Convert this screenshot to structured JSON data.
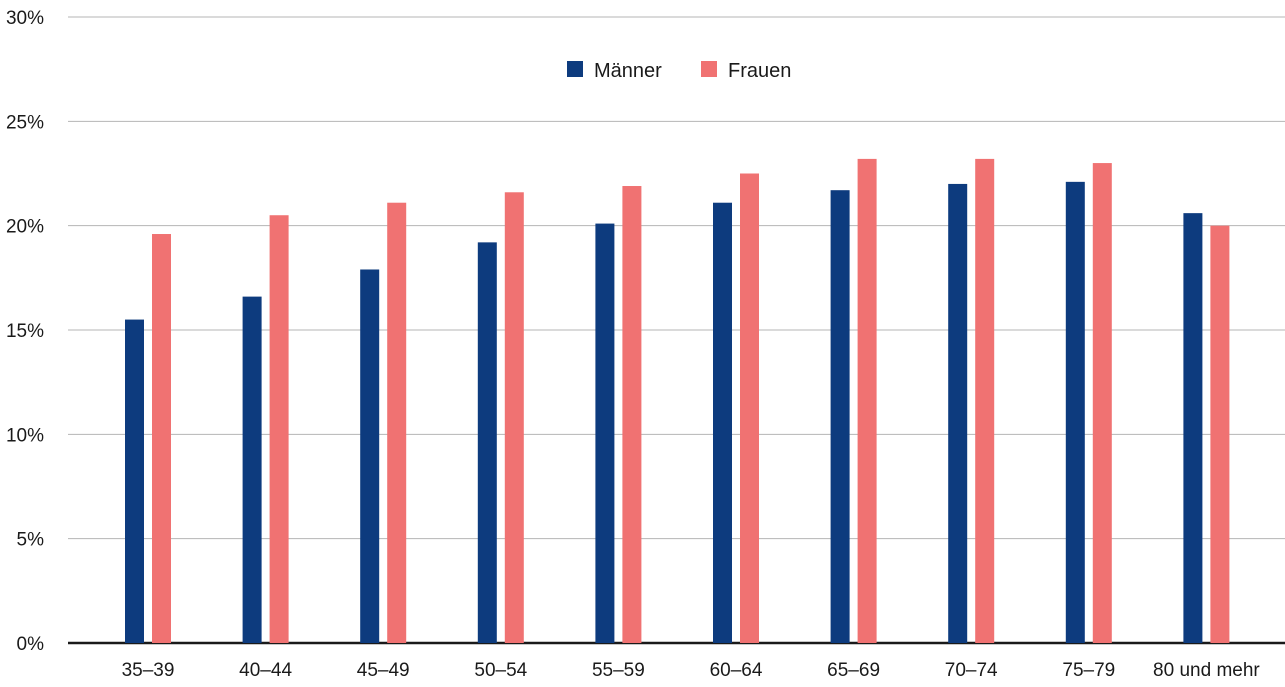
{
  "chart_data": {
    "type": "bar",
    "title": "",
    "xlabel": "",
    "ylabel": "",
    "categories": [
      "35–39",
      "40–44",
      "45–49",
      "50–54",
      "55–59",
      "60–64",
      "65–69",
      "70–74",
      "75–79",
      "80 und mehr"
    ],
    "series": [
      {
        "name": "Männer",
        "color": "#0d3b7e",
        "values": [
          15.5,
          16.6,
          17.9,
          19.2,
          20.1,
          21.1,
          21.7,
          22.0,
          22.1,
          20.6
        ]
      },
      {
        "name": "Frauen",
        "color": "#f07272",
        "values": [
          19.6,
          20.5,
          21.1,
          21.6,
          21.9,
          22.5,
          23.2,
          23.2,
          23.0,
          20.0
        ]
      }
    ],
    "ylim": [
      0,
      30
    ],
    "yticks": [
      0,
      5,
      10,
      15,
      20,
      25,
      30
    ],
    "ytick_suffix": "%",
    "grid": true,
    "legend_position": "top-center"
  }
}
